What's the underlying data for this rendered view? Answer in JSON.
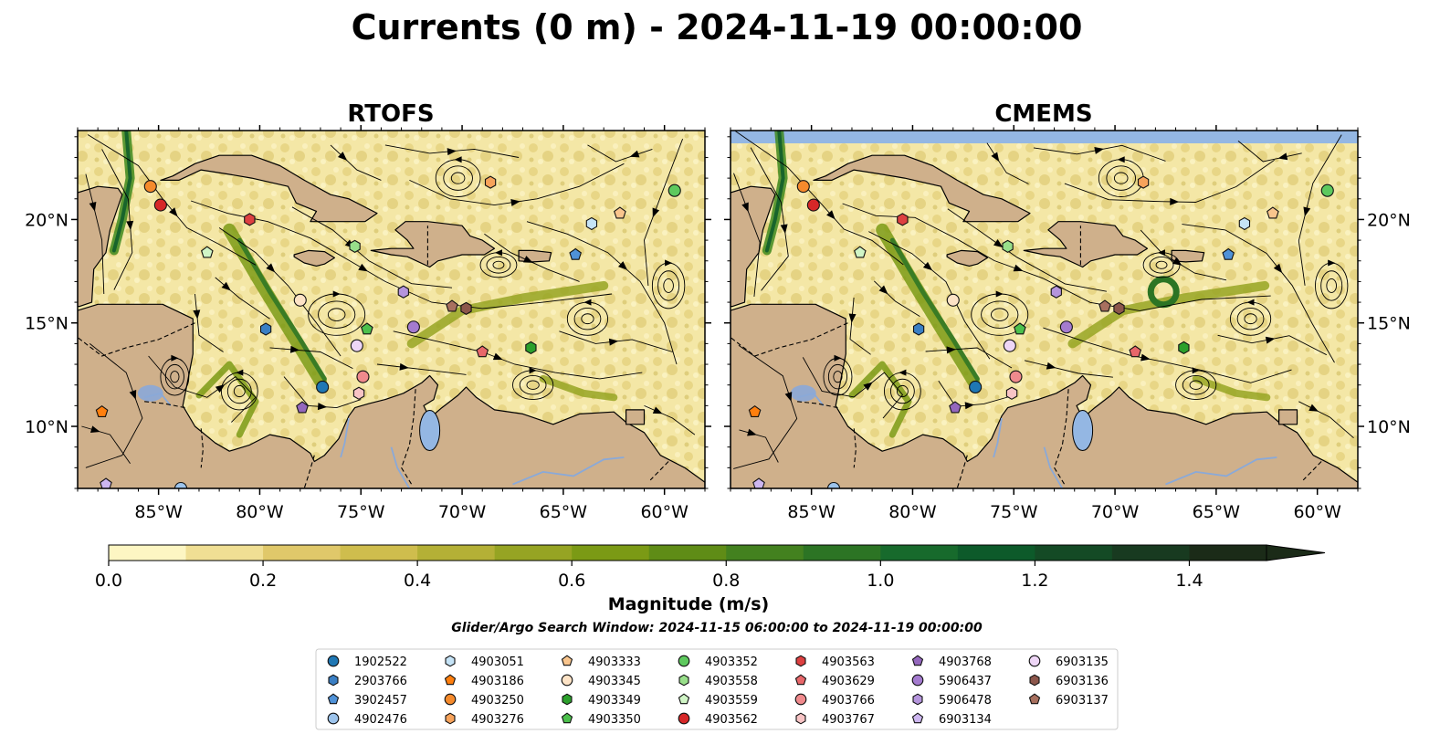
{
  "title": "Currents (0 m) - 2024-11-19 00:00:00",
  "colors": {
    "land": "#cfb08b",
    "water_mask": "#94b7e3",
    "river": "#8aa9d8",
    "coast": "#000000"
  },
  "chart_data": {
    "type": "heatmap",
    "panels": [
      {
        "title": "RTOFS"
      },
      {
        "title": "CMEMS"
      }
    ],
    "x_ticks": [
      {
        "value": -85,
        "label": "85°W"
      },
      {
        "value": -80,
        "label": "80°W"
      },
      {
        "value": -75,
        "label": "75°W"
      },
      {
        "value": -70,
        "label": "70°W"
      },
      {
        "value": -65,
        "label": "65°W"
      },
      {
        "value": -60,
        "label": "60°W"
      }
    ],
    "y_ticks": [
      {
        "value": 10,
        "label": "10°N"
      },
      {
        "value": 15,
        "label": "15°N"
      },
      {
        "value": 20,
        "label": "20°N"
      }
    ],
    "xlim": [
      -89,
      -58
    ],
    "ylim": [
      7,
      24.3
    ],
    "colorbar": {
      "label": "Magnitude (m/s)",
      "range": [
        0,
        1.5
      ],
      "step": 0.1,
      "extend": "max",
      "ticks": [
        {
          "value": 0.0,
          "label": "0.0"
        },
        {
          "value": 0.2,
          "label": "0.2"
        },
        {
          "value": 0.4,
          "label": "0.4"
        },
        {
          "value": 0.6,
          "label": "0.6"
        },
        {
          "value": 0.8,
          "label": "0.8"
        },
        {
          "value": 1.0,
          "label": "1.0"
        },
        {
          "value": 1.2,
          "label": "1.2"
        },
        {
          "value": 1.4,
          "label": "1.4"
        }
      ],
      "colors": [
        "#fdf6c3",
        "#f0df94",
        "#e0c86a",
        "#cfbd4d",
        "#b4b036",
        "#96a423",
        "#7b9a15",
        "#5f8c16",
        "#43811f",
        "#2c7424",
        "#176a2c",
        "#0d5a2a",
        "#144a25",
        "#183a20",
        "#1b2b18"
      ]
    },
    "search_window": "Glider/Argo Search Window: 2024-11-15 06:00:00 to 2024-11-19 00:00:00",
    "platforms": [
      {
        "id": "1902522",
        "marker": "circle",
        "color": "#1f77b4",
        "lon": -76.9,
        "lat": 11.9
      },
      {
        "id": "2903766",
        "marker": "hexagon",
        "color": "#3a7fc4",
        "lon": -79.7,
        "lat": 14.7
      },
      {
        "id": "3902457",
        "marker": "pentagon",
        "color": "#4f92d8",
        "lon": -64.4,
        "lat": 18.3
      },
      {
        "id": "4902476",
        "marker": "circle",
        "color": "#9dc4ec",
        "lon": -83.9,
        "lat": 7.0
      },
      {
        "id": "4903051",
        "marker": "hexagon",
        "color": "#c5e3f6",
        "lon": -63.6,
        "lat": 19.8
      },
      {
        "id": "4903186",
        "marker": "pentagon",
        "color": "#ff7f0e",
        "lon": -87.8,
        "lat": 10.7
      },
      {
        "id": "4903250",
        "marker": "circle",
        "color": "#f58a2c",
        "lon": -85.4,
        "lat": 21.6
      },
      {
        "id": "4903276",
        "marker": "hexagon",
        "color": "#f7a35b",
        "lon": -68.6,
        "lat": 21.8
      },
      {
        "id": "4903333",
        "marker": "pentagon",
        "color": "#f9c58d",
        "lon": -62.2,
        "lat": 20.3
      },
      {
        "id": "4903345",
        "marker": "circle",
        "color": "#fde3c6",
        "lon": -78.0,
        "lat": 16.1
      },
      {
        "id": "4903349",
        "marker": "hexagon",
        "color": "#2ca02c",
        "lon": -66.6,
        "lat": 13.8
      },
      {
        "id": "4903350",
        "marker": "pentagon",
        "color": "#4cc04c",
        "lon": -74.7,
        "lat": 14.7
      },
      {
        "id": "4903352",
        "marker": "circle",
        "color": "#5ec95e",
        "lon": -59.5,
        "lat": 21.4
      },
      {
        "id": "4903558",
        "marker": "hexagon",
        "color": "#98df8a",
        "lon": -75.3,
        "lat": 18.7
      },
      {
        "id": "4903559",
        "marker": "pentagon",
        "color": "#d0f5c6",
        "lon": -82.6,
        "lat": 18.4
      },
      {
        "id": "4903562",
        "marker": "circle",
        "color": "#d62728",
        "lon": -84.9,
        "lat": 20.7
      },
      {
        "id": "4903563",
        "marker": "hexagon",
        "color": "#dd4041",
        "lon": -80.5,
        "lat": 20.0
      },
      {
        "id": "4903629",
        "marker": "pentagon",
        "color": "#e8676a",
        "lon": -69.0,
        "lat": 13.6
      },
      {
        "id": "4903766",
        "marker": "circle",
        "color": "#f08a8d",
        "lon": -74.9,
        "lat": 12.4
      },
      {
        "id": "4903767",
        "marker": "hexagon",
        "color": "#f8c4c5",
        "lon": -75.1,
        "lat": 11.6
      },
      {
        "id": "4903768",
        "marker": "pentagon",
        "color": "#9467bd",
        "lon": -77.9,
        "lat": 10.9
      },
      {
        "id": "5906437",
        "marker": "circle",
        "color": "#a47bcf",
        "lon": -72.4,
        "lat": 14.8
      },
      {
        "id": "5906478",
        "marker": "hexagon",
        "color": "#b595dd",
        "lon": -72.9,
        "lat": 16.5
      },
      {
        "id": "6903134",
        "marker": "pentagon",
        "color": "#cdb6f0",
        "lon": -87.6,
        "lat": 7.2
      },
      {
        "id": "6903135",
        "marker": "circle",
        "color": "#eed6f6",
        "lon": -75.2,
        "lat": 13.9
      },
      {
        "id": "6903136",
        "marker": "hexagon",
        "color": "#8c564b",
        "lon": -69.8,
        "lat": 15.7
      },
      {
        "id": "6903137",
        "marker": "pentagon",
        "color": "#a8705f",
        "lon": -70.5,
        "lat": 15.8
      }
    ]
  }
}
